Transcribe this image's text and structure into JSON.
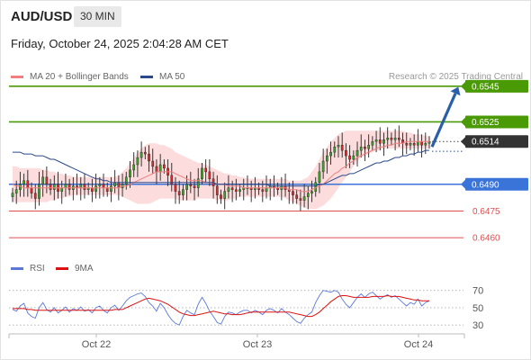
{
  "header": {
    "symbol": "AUD/USD",
    "timeframe": "30 MIN",
    "datetime": "Friday, October 24, 2025 2:04:28 AM CET",
    "credit": "Research © 2025 Trading Central"
  },
  "legend_main": [
    {
      "label": "MA 20 + Bollinger Bands",
      "color": "#f08080"
    },
    {
      "label": "MA 50",
      "color": "#2b4a8a"
    }
  ],
  "legend_rsi": [
    {
      "label": "RSI",
      "color": "#5a78d6"
    },
    {
      "label": "9MA",
      "color": "#dd1111"
    }
  ],
  "chart_data": [
    {
      "type": "line",
      "series_note": "candlestick price chart",
      "x_ticks": [
        "Oct 22",
        "Oct 23",
        "Oct 24"
      ],
      "ylim": [
        0.6452,
        0.6553
      ],
      "price_levels": [
        {
          "value": 0.6545,
          "label": "0.6545",
          "style": "resistance",
          "color": "#4a9a06"
        },
        {
          "value": 0.6525,
          "label": "0.6525",
          "style": "resistance",
          "color": "#4a9a06"
        },
        {
          "value": 0.6514,
          "label": "0.6514",
          "style": "current",
          "color": "#333333"
        },
        {
          "value": 0.649,
          "label": "0.6490",
          "style": "pivot",
          "color": "#3a74d8"
        },
        {
          "value": 0.6475,
          "label": "0.6475",
          "style": "support",
          "color": "#e05050"
        },
        {
          "value": 0.646,
          "label": "0.6460",
          "style": "support",
          "color": "#e05050"
        }
      ],
      "closes": [
        0.6485,
        0.6487,
        0.649,
        0.6492,
        0.6488,
        0.6485,
        0.6482,
        0.649,
        0.6494,
        0.649,
        0.6487,
        0.649,
        0.6486,
        0.6488,
        0.649,
        0.6487,
        0.6489,
        0.6488,
        0.649,
        0.6487,
        0.6488,
        0.6486,
        0.6489,
        0.649,
        0.6488,
        0.6486,
        0.6489,
        0.6491,
        0.6488,
        0.649,
        0.6494,
        0.6498,
        0.6501,
        0.6505,
        0.6508,
        0.6507,
        0.6503,
        0.65,
        0.6497,
        0.6501,
        0.6499,
        0.6495,
        0.649,
        0.6486,
        0.6484,
        0.6487,
        0.649,
        0.6489,
        0.6488,
        0.6493,
        0.6499,
        0.6497,
        0.6493,
        0.6489,
        0.6484,
        0.6482,
        0.6486,
        0.6488,
        0.6487,
        0.6486,
        0.6487,
        0.6488,
        0.6488,
        0.6487,
        0.6488,
        0.6487,
        0.6486,
        0.6488,
        0.6489,
        0.6488,
        0.6487,
        0.6489,
        0.6487,
        0.6486,
        0.6484,
        0.6482,
        0.6481,
        0.6483,
        0.6485,
        0.6486,
        0.6491,
        0.6497,
        0.6503,
        0.6506,
        0.6508,
        0.6511,
        0.6512,
        0.6509,
        0.6506,
        0.6504,
        0.6506,
        0.6509,
        0.6511,
        0.651,
        0.6512,
        0.6514,
        0.6515,
        0.6513,
        0.6515,
        0.6516,
        0.6515,
        0.6516,
        0.6515,
        0.6513,
        0.6512,
        0.6513,
        0.6512,
        0.6514,
        0.6512,
        0.6513,
        0.6514
      ],
      "ma20": [
        0.649,
        0.6489,
        0.6489,
        0.6488,
        0.6488,
        0.6488,
        0.6488,
        0.6488,
        0.6488,
        0.6488,
        0.6488,
        0.6488,
        0.6488,
        0.6488,
        0.6488,
        0.6488,
        0.6488,
        0.6488,
        0.6488,
        0.6488,
        0.6488,
        0.6488,
        0.6488,
        0.6488,
        0.6488,
        0.6488,
        0.6488,
        0.6488,
        0.6488,
        0.6489,
        0.6489,
        0.649,
        0.6491,
        0.6492,
        0.6493,
        0.6494,
        0.6495,
        0.6496,
        0.6497,
        0.6497,
        0.6497,
        0.6497,
        0.6497,
        0.6496,
        0.6495,
        0.6494,
        0.6493,
        0.6492,
        0.6492,
        0.6492,
        0.6492,
        0.6491,
        0.6491,
        0.6491,
        0.649,
        0.649,
        0.649,
        0.6489,
        0.6489,
        0.6489,
        0.6489,
        0.6488,
        0.6488,
        0.6488,
        0.6488,
        0.6488,
        0.6488,
        0.6488,
        0.6488,
        0.6488,
        0.6488,
        0.6488,
        0.6488,
        0.6487,
        0.6487,
        0.6487,
        0.6486,
        0.6486,
        0.6486,
        0.6487,
        0.6488,
        0.6489,
        0.649,
        0.6492,
        0.6494,
        0.6496,
        0.6497,
        0.6499,
        0.65,
        0.6502,
        0.6503,
        0.6505,
        0.6506,
        0.6507,
        0.6508,
        0.6509,
        0.651,
        0.6511,
        0.6511,
        0.6512,
        0.6512,
        0.6513,
        0.6513,
        0.6513,
        0.6514,
        0.6514,
        0.6514,
        0.6514,
        0.6514,
        0.6514,
        0.6514
      ],
      "ma50": [
        0.6508,
        0.6508,
        0.6508,
        0.6507,
        0.6507,
        0.6507,
        0.6506,
        0.6506,
        0.6506,
        0.6505,
        0.6504,
        0.6504,
        0.6503,
        0.6502,
        0.6501,
        0.65,
        0.6499,
        0.6498,
        0.6497,
        0.6496,
        0.6495,
        0.6494,
        0.6493,
        0.6493,
        0.6492,
        0.6492,
        0.6491,
        0.6491,
        0.6491,
        0.6491,
        0.6491,
        0.6491,
        0.6491,
        0.6491,
        0.6491,
        0.6491,
        0.6491,
        0.6491,
        0.6491,
        0.6491,
        0.6491,
        0.6491,
        0.6491,
        0.6491,
        0.6491,
        0.6491,
        0.6491,
        0.6491,
        0.6491,
        0.6491,
        0.6491,
        0.6491,
        0.6491,
        0.6491,
        0.649,
        0.649,
        0.649,
        0.649,
        0.649,
        0.649,
        0.649,
        0.649,
        0.649,
        0.649,
        0.649,
        0.649,
        0.649,
        0.649,
        0.6489,
        0.6489,
        0.6489,
        0.6489,
        0.6489,
        0.6489,
        0.6489,
        0.6489,
        0.6489,
        0.6489,
        0.6489,
        0.6489,
        0.6489,
        0.649,
        0.649,
        0.6491,
        0.6492,
        0.6493,
        0.6494,
        0.6495,
        0.6495,
        0.6496,
        0.6496,
        0.6497,
        0.6498,
        0.6499,
        0.65,
        0.6501,
        0.6502,
        0.6502,
        0.6503,
        0.6503,
        0.6504,
        0.6505,
        0.6505,
        0.6506,
        0.6506,
        0.6507,
        0.6507,
        0.6508,
        0.6508,
        0.6509,
        0.6509
      ],
      "bb_upper": [
        0.65,
        0.65,
        0.6499,
        0.6499,
        0.6499,
        0.6499,
        0.6499,
        0.6499,
        0.6498,
        0.6498,
        0.6497,
        0.6497,
        0.6496,
        0.6496,
        0.6495,
        0.6495,
        0.6494,
        0.6494,
        0.6494,
        0.6494,
        0.6494,
        0.6494,
        0.6494,
        0.6494,
        0.6494,
        0.6494,
        0.6494,
        0.6494,
        0.6495,
        0.6497,
        0.6499,
        0.6502,
        0.6505,
        0.6508,
        0.651,
        0.6512,
        0.6513,
        0.6513,
        0.6513,
        0.6512,
        0.6512,
        0.6511,
        0.651,
        0.6508,
        0.6507,
        0.6506,
        0.6505,
        0.6504,
        0.6503,
        0.6502,
        0.6502,
        0.6501,
        0.65,
        0.6499,
        0.6498,
        0.6497,
        0.6496,
        0.6496,
        0.6495,
        0.6495,
        0.6494,
        0.6494,
        0.6493,
        0.6493,
        0.6493,
        0.6493,
        0.6493,
        0.6493,
        0.6493,
        0.6493,
        0.6493,
        0.6493,
        0.6493,
        0.6492,
        0.6492,
        0.6492,
        0.6492,
        0.6493,
        0.6494,
        0.6497,
        0.65,
        0.6504,
        0.6508,
        0.6511,
        0.6514,
        0.6516,
        0.6518,
        0.6519,
        0.652,
        0.652,
        0.652,
        0.652,
        0.652,
        0.652,
        0.652,
        0.652,
        0.652,
        0.652,
        0.652,
        0.652,
        0.652,
        0.652,
        0.652,
        0.652,
        0.6519,
        0.6519,
        0.6518,
        0.6518,
        0.6518,
        0.6517,
        0.6517
      ],
      "bb_lower": [
        0.648,
        0.648,
        0.648,
        0.648,
        0.648,
        0.648,
        0.648,
        0.648,
        0.648,
        0.648,
        0.6481,
        0.6481,
        0.6482,
        0.6482,
        0.6483,
        0.6483,
        0.6484,
        0.6484,
        0.6484,
        0.6484,
        0.6484,
        0.6484,
        0.6484,
        0.6484,
        0.6484,
        0.6484,
        0.6484,
        0.6484,
        0.6484,
        0.6483,
        0.6482,
        0.6481,
        0.648,
        0.6479,
        0.6479,
        0.6479,
        0.6479,
        0.648,
        0.6481,
        0.6482,
        0.6482,
        0.6482,
        0.6482,
        0.6482,
        0.6481,
        0.6481,
        0.6481,
        0.6481,
        0.6481,
        0.6482,
        0.6482,
        0.6482,
        0.6482,
        0.6482,
        0.6481,
        0.6481,
        0.6481,
        0.6481,
        0.6482,
        0.6482,
        0.6483,
        0.6483,
        0.6483,
        0.6483,
        0.6483,
        0.6483,
        0.6483,
        0.6483,
        0.6483,
        0.6483,
        0.6483,
        0.6483,
        0.6482,
        0.6481,
        0.648,
        0.6479,
        0.6478,
        0.6477,
        0.6476,
        0.6476,
        0.6476,
        0.6477,
        0.6478,
        0.648,
        0.6482,
        0.6485,
        0.6488,
        0.6491,
        0.6494,
        0.6497,
        0.65,
        0.6503,
        0.6505,
        0.6506,
        0.6507,
        0.6508,
        0.6509,
        0.6509,
        0.651,
        0.651,
        0.651,
        0.651,
        0.651,
        0.651,
        0.651,
        0.651,
        0.651,
        0.651,
        0.651,
        0.651,
        0.651
      ],
      "projection": {
        "from": 0.6512,
        "to": 0.6545
      }
    },
    {
      "type": "line",
      "series_note": "RSI panel",
      "y_ticks": [
        70,
        50,
        30
      ],
      "ylim": [
        25,
        78
      ],
      "rsi": [
        48,
        46,
        52,
        55,
        44,
        40,
        38,
        50,
        56,
        48,
        45,
        50,
        44,
        47,
        51,
        45,
        49,
        47,
        51,
        46,
        48,
        44,
        50,
        52,
        47,
        44,
        50,
        53,
        47,
        52,
        58,
        62,
        64,
        66,
        67,
        63,
        56,
        52,
        46,
        55,
        50,
        42,
        36,
        32,
        30,
        40,
        47,
        44,
        42,
        54,
        62,
        55,
        46,
        40,
        33,
        31,
        40,
        45,
        44,
        42,
        45,
        47,
        47,
        44,
        47,
        45,
        42,
        47,
        49,
        47,
        44,
        49,
        45,
        42,
        38,
        34,
        32,
        38,
        42,
        45,
        56,
        64,
        70,
        69,
        68,
        70,
        68,
        60,
        54,
        50,
        56,
        62,
        66,
        62,
        66,
        68,
        64,
        60,
        63,
        65,
        62,
        64,
        60,
        56,
        52,
        56,
        54,
        60,
        52,
        56,
        58
      ],
      "rsi_ma9": [
        49,
        49,
        49,
        49,
        48,
        48,
        47,
        47,
        47,
        47,
        47,
        47,
        47,
        47,
        47,
        47,
        47,
        47,
        47,
        47,
        47,
        47,
        47,
        47,
        47,
        47,
        47,
        48,
        48,
        48,
        50,
        52,
        54,
        56,
        58,
        60,
        61,
        60,
        59,
        58,
        56,
        54,
        51,
        48,
        45,
        43,
        42,
        41,
        41,
        42,
        43,
        44,
        45,
        46,
        45,
        44,
        43,
        43,
        42,
        42,
        42,
        43,
        44,
        45,
        45,
        45,
        45,
        45,
        45,
        45,
        45,
        45,
        45,
        45,
        44,
        43,
        42,
        41,
        40,
        40,
        42,
        45,
        49,
        53,
        57,
        60,
        63,
        64,
        64,
        63,
        62,
        62,
        62,
        62,
        62,
        63,
        63,
        63,
        63,
        64,
        63,
        63,
        63,
        62,
        61,
        60,
        59,
        59,
        58,
        58,
        58
      ]
    }
  ]
}
